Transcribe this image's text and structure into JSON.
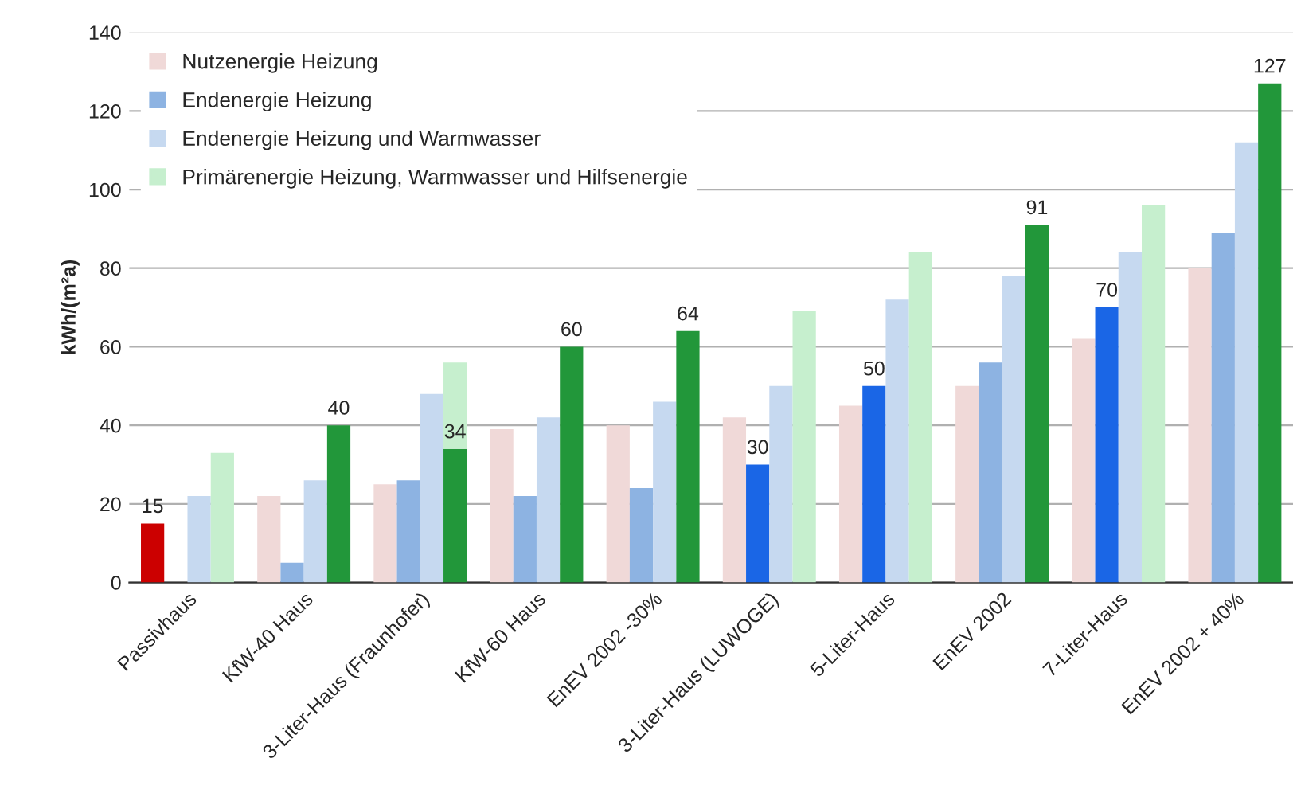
{
  "chart_data": {
    "type": "bar",
    "ylabel": "kWh/(m²a)",
    "categories": [
      "Passivhaus",
      "KfW-40 Haus",
      "3-Liter-Haus (Fraunhofer)",
      "KfW-60 Haus",
      "EnEV 2002 -30%",
      "3-Liter-Haus (LUWOGE)",
      "5-Liter-Haus",
      "EnEV 2002",
      "7-Liter-Haus",
      "EnEV 2002 + 40%"
    ],
    "series": [
      {
        "name": "Nutzenergie Heizung",
        "color": "#f0d9d8",
        "values": [
          15,
          22,
          25,
          39,
          40,
          42,
          45,
          50,
          62,
          80
        ],
        "colors": [
          "#cc0000",
          "#f0d9d8",
          "#f0d9d8",
          "#f0d9d8",
          "#f0d9d8",
          "#f0d9d8",
          "#f0d9d8",
          "#f0d9d8",
          "#f0d9d8",
          "#f0d9d8"
        ],
        "value_labels": [
          "15",
          null,
          null,
          null,
          null,
          null,
          null,
          null,
          null,
          null
        ]
      },
      {
        "name": "Endenergie Heizung",
        "color": "#8db3e2",
        "values": [
          null,
          5,
          26,
          22,
          24,
          30,
          50,
          56,
          70,
          89
        ],
        "colors": [
          "#8db3e2",
          "#8db3e2",
          "#8db3e2",
          "#8db3e2",
          "#8db3e2",
          "#1a66e6",
          "#1a66e6",
          "#8db3e2",
          "#1a66e6",
          "#8db3e2"
        ],
        "value_labels": [
          null,
          null,
          null,
          null,
          null,
          "30",
          "50",
          null,
          "70",
          null
        ]
      },
      {
        "name": "Endenergie Heizung und Warmwasser",
        "color": "#c6d9f0",
        "values": [
          22,
          26,
          48,
          42,
          46,
          50,
          72,
          78,
          84,
          112
        ],
        "colors": [
          "#c6d9f0",
          "#c6d9f0",
          "#c6d9f0",
          "#c6d9f0",
          "#c6d9f0",
          "#c6d9f0",
          "#c6d9f0",
          "#c6d9f0",
          "#c6d9f0",
          "#c6d9f0"
        ]
      },
      {
        "name": "Primärenergie Heizung, Warmwasser und Hilfsenergie",
        "color": "#c6efce",
        "values": [
          33,
          40,
          34,
          60,
          64,
          69,
          84,
          91,
          96,
          127
        ],
        "colors": [
          "#c6efce",
          "#22973a",
          "#22973a",
          "#22973a",
          "#22973a",
          "#c6efce",
          "#c6efce",
          "#22973a",
          "#c6efce",
          "#22973a"
        ],
        "value_labels": [
          null,
          "40",
          "34",
          "60",
          "64",
          null,
          null,
          "91",
          null,
          "127"
        ]
      },
      {
        "color": "#c6efce",
        "values": [
          null,
          null,
          22,
          null,
          null,
          null,
          null,
          null,
          null,
          null
        ],
        "base": [
          null,
          null,
          34,
          null,
          null,
          null,
          null,
          null,
          null,
          null
        ]
      }
    ],
    "ylim": [
      0,
      140
    ],
    "yticks": [
      0,
      20,
      40,
      60,
      80,
      100,
      120,
      140
    ],
    "grid": "y",
    "legend": "top left"
  }
}
